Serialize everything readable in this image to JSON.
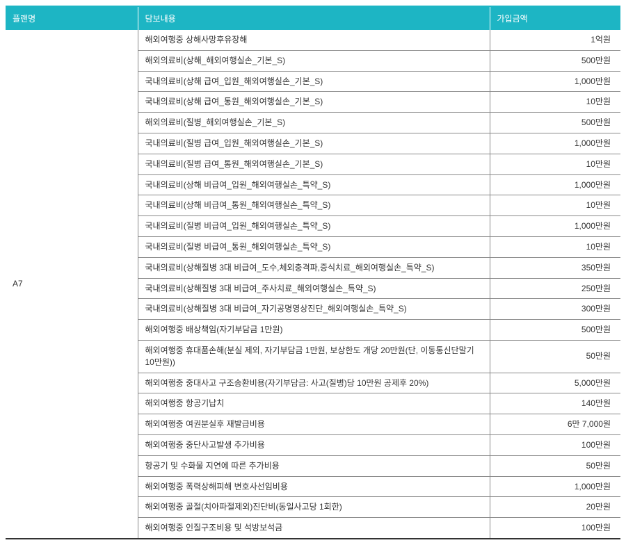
{
  "header": {
    "plan": "플랜명",
    "content": "담보내용",
    "amount": "가입금액"
  },
  "plan_name": "A7",
  "rows": [
    {
      "content": "해외여행중 상해사망후유장해",
      "amount": "1억원"
    },
    {
      "content": "해외의료비(상해_해외여행실손_기본_S)",
      "amount": "500만원"
    },
    {
      "content": "국내의료비(상해 급여_입원_해외여행실손_기본_S)",
      "amount": "1,000만원"
    },
    {
      "content": "국내의료비(상해 급여_통원_해외여행실손_기본_S)",
      "amount": "10만원"
    },
    {
      "content": "해외의료비(질병_해외여행실손_기본_S)",
      "amount": "500만원"
    },
    {
      "content": "국내의료비(질병 급여_입원_해외여행실손_기본_S)",
      "amount": "1,000만원"
    },
    {
      "content": "국내의료비(질병 급여_통원_해외여행실손_기본_S)",
      "amount": "10만원"
    },
    {
      "content": "국내의료비(상해 비급여_입원_해외여행실손_특약_S)",
      "amount": "1,000만원"
    },
    {
      "content": "국내의료비(상해 비급여_통원_해외여행실손_특약_S)",
      "amount": "10만원"
    },
    {
      "content": "국내의료비(질병 비급여_입원_해외여행실손_특약_S)",
      "amount": "1,000만원"
    },
    {
      "content": "국내의료비(질병 비급여_통원_해외여행실손_특약_S)",
      "amount": "10만원"
    },
    {
      "content": "국내의료비(상해질병 3대 비급여_도수,체외충격파,증식치료_해외여행실손_특약_S)",
      "amount": "350만원"
    },
    {
      "content": "국내의료비(상해질병 3대 비급여_주사치료_해외여행실손_특약_S)",
      "amount": "250만원"
    },
    {
      "content": "국내의료비(상해질병 3대 비급여_자기공명영상진단_해외여행실손_특약_S)",
      "amount": "300만원"
    },
    {
      "content": "해외여행중 배상책임(자기부담금 1만원)",
      "amount": "500만원"
    },
    {
      "content": "해외여행중 휴대품손해(분실 제외, 자기부담금 1만원, 보상한도 개당 20만원(단, 이동통신단말기 10만원))",
      "amount": "50만원"
    },
    {
      "content": "해외여행중 중대사고 구조송환비용(자기부담금: 사고(질병)당 10만원 공제후 20%)",
      "amount": "5,000만원"
    },
    {
      "content": "해외여행중 항공기납치",
      "amount": "140만원"
    },
    {
      "content": "해외여행중 여권분실후 재발급비용",
      "amount": "6만 7,000원"
    },
    {
      "content": "해외여행중 중단사고발생 추가비용",
      "amount": "100만원"
    },
    {
      "content": "항공기 및 수화물 지연에 따른 추가비용",
      "amount": "50만원"
    },
    {
      "content": "해외여행중 폭력상해피해 변호사선임비용",
      "amount": "1,000만원"
    },
    {
      "content": "해외여행중 골절(치아파절제외)진단비(동일사고당 1회한)",
      "amount": "20만원"
    },
    {
      "content": "해외여행중 인질구조비용 및 석방보석금",
      "amount": "100만원"
    }
  ]
}
